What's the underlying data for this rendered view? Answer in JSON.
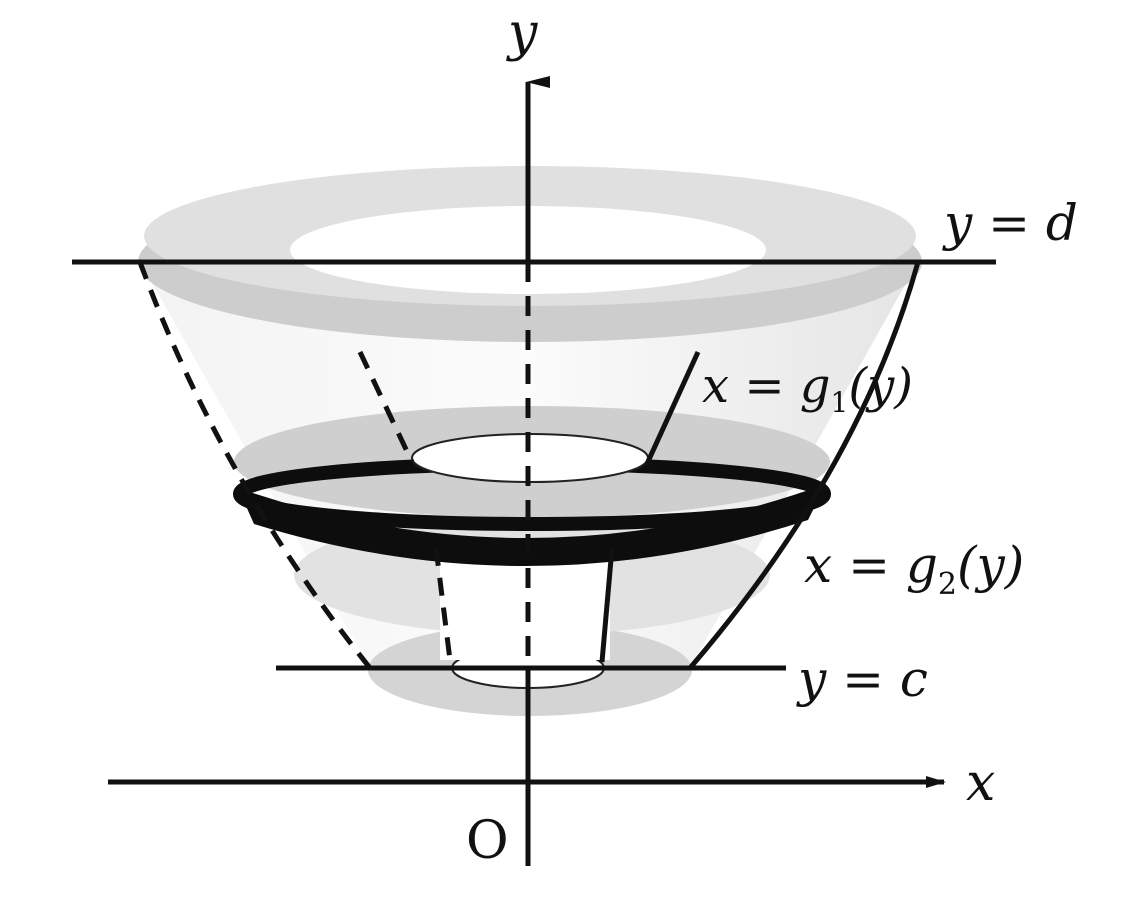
{
  "labels": {
    "y_axis": "y",
    "x_axis": "x",
    "origin": "O",
    "top_line": "y = d",
    "bottom_line": "y = c",
    "inner_curve": "x = g",
    "inner_curve_sub": "1",
    "inner_curve_arg": "(y)",
    "outer_curve": "x = g",
    "outer_curve_sub": "2",
    "outer_curve_arg": "(y)"
  },
  "colors": {
    "ink": "#111111",
    "surface_light": "#e6e6e6",
    "surface_mid": "#c8c8c8",
    "slab": "#0d0d0d"
  }
}
